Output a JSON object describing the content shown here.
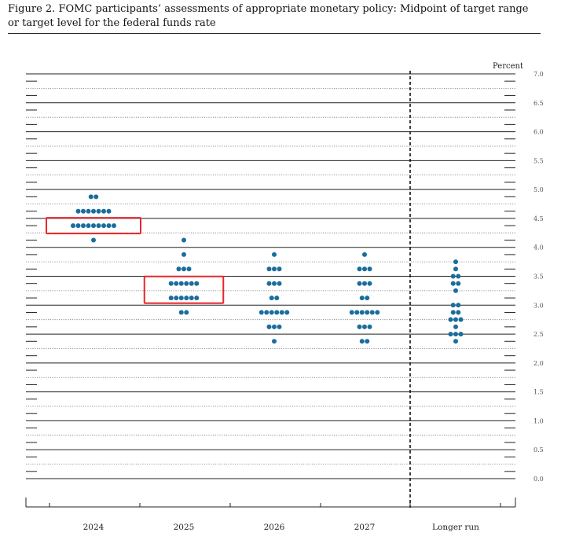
{
  "figure": {
    "caption_line1": "Figure 2.  FOMC participants’ assessments of appropriate monetary policy:  Midpoint of target range",
    "caption_line2": "or target level for the federal funds rate"
  },
  "chart_data": {
    "type": "scatter",
    "ylabel": "Percent",
    "ylim": [
      0.0,
      7.0
    ],
    "yticks": [
      "7.0",
      "6.5",
      "6.0",
      "5.5",
      "5.0",
      "4.5",
      "4.0",
      "3.5",
      "3.0",
      "2.5",
      "2.0",
      "1.5",
      "1.0",
      "0.5",
      "0.0"
    ],
    "categories": [
      "2024",
      "2025",
      "2026",
      "2027",
      "Longer run"
    ],
    "dot_color": "#1a6d9c",
    "highlight_color": "#e8262a",
    "highlights": [
      {
        "category": "2024",
        "value": 4.375
      },
      {
        "category": "2025",
        "value": 3.375
      }
    ],
    "dots": {
      "2024": [
        {
          "value": 4.875,
          "count": 2
        },
        {
          "value": 4.625,
          "count": 7
        },
        {
          "value": 4.375,
          "count": 9
        },
        {
          "value": 4.125,
          "count": 1
        }
      ],
      "2025": [
        {
          "value": 4.125,
          "count": 1
        },
        {
          "value": 3.875,
          "count": 1
        },
        {
          "value": 3.625,
          "count": 3
        },
        {
          "value": 3.375,
          "count": 6
        },
        {
          "value": 3.125,
          "count": 6
        },
        {
          "value": 2.875,
          "count": 2
        }
      ],
      "2026": [
        {
          "value": 3.875,
          "count": 1
        },
        {
          "value": 3.625,
          "count": 3
        },
        {
          "value": 3.375,
          "count": 3
        },
        {
          "value": 3.125,
          "count": 2
        },
        {
          "value": 2.875,
          "count": 6
        },
        {
          "value": 2.625,
          "count": 3
        },
        {
          "value": 2.375,
          "count": 1
        }
      ],
      "2027": [
        {
          "value": 3.875,
          "count": 1
        },
        {
          "value": 3.625,
          "count": 3
        },
        {
          "value": 3.375,
          "count": 3
        },
        {
          "value": 3.125,
          "count": 2
        },
        {
          "value": 2.875,
          "count": 6
        },
        {
          "value": 2.625,
          "count": 3
        },
        {
          "value": 2.375,
          "count": 2
        }
      ],
      "Longer run": [
        {
          "value": 3.75,
          "count": 1
        },
        {
          "value": 3.625,
          "count": 1
        },
        {
          "value": 3.5,
          "count": 2
        },
        {
          "value": 3.375,
          "count": 2
        },
        {
          "value": 3.25,
          "count": 1
        },
        {
          "value": 3.0,
          "count": 2
        },
        {
          "value": 2.875,
          "count": 2
        },
        {
          "value": 2.75,
          "count": 3
        },
        {
          "value": 2.625,
          "count": 1
        },
        {
          "value": 2.5,
          "count": 3
        },
        {
          "value": 2.375,
          "count": 1
        }
      ]
    }
  }
}
